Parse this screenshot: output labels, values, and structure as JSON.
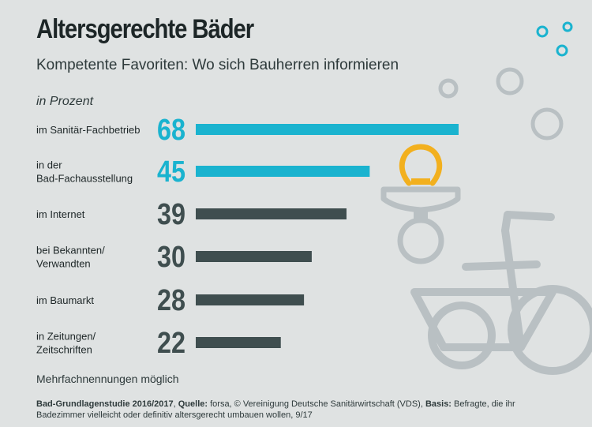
{
  "header": {
    "title": "Altersgerechte Bäder",
    "subtitle": "Kompetente Favoriten: Wo sich Bauherren informieren",
    "unit_label": "in Prozent"
  },
  "note": "Mehrfachnennungen möglich",
  "footer": {
    "study_label": "Bad-Grundlagenstudie 2016/2017",
    "sep1": ", ",
    "source_label": "Quelle:",
    "source_text": " forsa, © Vereinigung Deutsche Sanitärwirtschaft (VDS), ",
    "basis_label": "Basis:",
    "basis_text": " Befragte, die ihr Badezimmer vielleicht oder definitiv altersgerecht umbauen wollen, 9/17"
  },
  "colors": {
    "highlight": "#1ab3cf",
    "default": "#3f4e4f",
    "decor": "#b9c0c3",
    "bulb": "#f2b01e"
  },
  "icons": [
    "bubble-icons",
    "pacifier-icon",
    "tricycle-icon"
  ],
  "chart_data": {
    "type": "bar",
    "orientation": "horizontal",
    "categories": [
      [
        "im Sanitär-Fachbetrieb"
      ],
      [
        "in der",
        "Bad-Fachausstellung"
      ],
      [
        "im Internet"
      ],
      [
        "bei Bekannten/",
        "Verwandten"
      ],
      [
        "im Baumarkt"
      ],
      [
        "in Zeitungen/",
        "Zeitschriften"
      ]
    ],
    "values": [
      68,
      45,
      39,
      30,
      28,
      22
    ],
    "highlighted": [
      true,
      true,
      false,
      false,
      false,
      false
    ],
    "xlim": [
      0,
      68
    ]
  }
}
